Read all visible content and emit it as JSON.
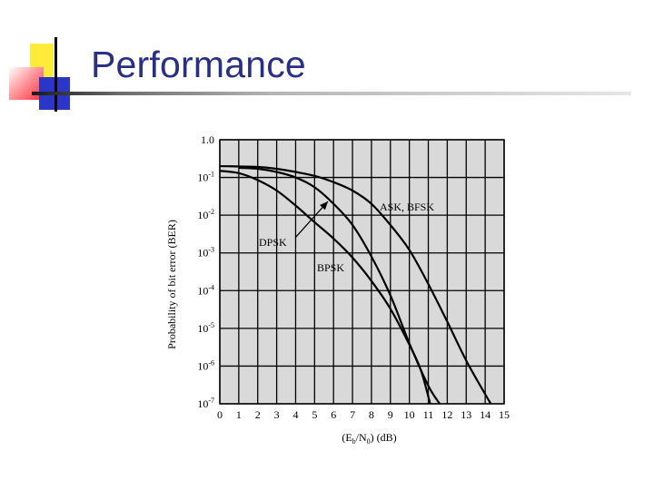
{
  "slide": {
    "title": "Performance"
  },
  "chart_data": {
    "type": "line",
    "xlabel_parts": {
      "open": "(E",
      "sub1": "b",
      "mid": "/N",
      "sub2": "0",
      "close": ") (dB)"
    },
    "ylabel": "Probability of bit error (BER)",
    "x_ticks": [
      0,
      1,
      2,
      3,
      4,
      5,
      6,
      7,
      8,
      9,
      10,
      11,
      12,
      13,
      14,
      15
    ],
    "y_ticks": [
      {
        "exp": 0,
        "label": "1.0"
      },
      {
        "exp": -1,
        "base": "10",
        "sup": "-1"
      },
      {
        "exp": -2,
        "base": "10",
        "sup": "-2"
      },
      {
        "exp": -3,
        "base": "10",
        "sup": "-3"
      },
      {
        "exp": -4,
        "base": "10",
        "sup": "-4"
      },
      {
        "exp": -5,
        "base": "10",
        "sup": "-5"
      },
      {
        "exp": -6,
        "base": "10",
        "sup": "-6"
      },
      {
        "exp": -7,
        "base": "10",
        "sup": "-7"
      }
    ],
    "xlim": [
      0,
      15
    ],
    "ylim": [
      1e-07,
      1.0
    ],
    "y_scale": "log",
    "grid": true,
    "series": [
      {
        "name": "ASK, BFSK",
        "x": [
          0,
          2,
          3,
          4,
          5,
          6,
          7,
          8,
          9,
          10,
          11,
          12,
          13,
          14,
          14.3
        ],
        "y": [
          0.2,
          0.19,
          0.17,
          0.14,
          0.11,
          0.075,
          0.045,
          0.02,
          0.0055,
          0.0012,
          0.00015,
          1.5e-05,
          1.4e-06,
          1.8e-07,
          1e-07
        ]
      },
      {
        "name": "DPSK",
        "x": [
          1,
          2,
          3,
          4,
          5,
          6,
          7,
          8,
          9,
          10,
          11,
          11.6
        ],
        "y": [
          0.18,
          0.17,
          0.14,
          0.1,
          0.055,
          0.02,
          0.0055,
          0.0008,
          7.5e-05,
          4e-06,
          3e-07,
          1e-07
        ]
      },
      {
        "name": "BPSK",
        "x": [
          0,
          1,
          2,
          3,
          4,
          5,
          6,
          7,
          8,
          9,
          10,
          10.6,
          11.1
        ],
        "y": [
          0.15,
          0.13,
          0.085,
          0.045,
          0.018,
          0.0065,
          0.0024,
          0.00075,
          0.00018,
          3.3e-05,
          3.7e-06,
          8e-07,
          1e-07
        ]
      }
    ],
    "annotations": [
      {
        "text": "ASK, BFSK",
        "series": "ASK, BFSK"
      },
      {
        "text": "DPSK",
        "series": "DPSK"
      },
      {
        "text": "BPSK",
        "series": "BPSK"
      }
    ]
  }
}
